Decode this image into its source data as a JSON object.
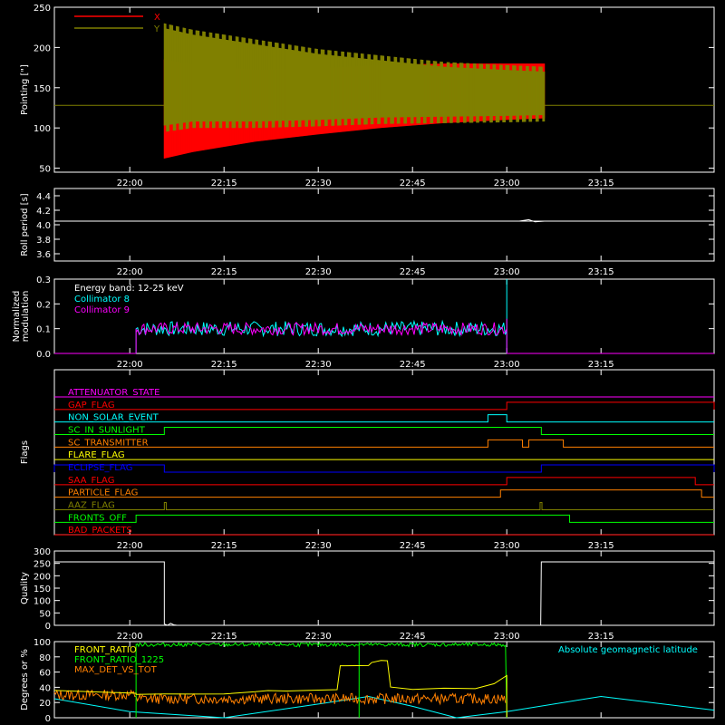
{
  "x_ticks": [
    "22:00",
    "22:15",
    "22:30",
    "22:45",
    "23:00",
    "23:15"
  ],
  "x_tick_minutes": [
    0,
    15,
    30,
    45,
    60,
    75
  ],
  "x_range_minutes": [
    -12,
    93
  ],
  "colors": {
    "background": "#000000",
    "axes": "#ffffff"
  },
  "chart_data": [
    {
      "type": "line",
      "ylabel": "Pointing [\"]",
      "ylim": [
        45,
        250
      ],
      "yticks": [
        50,
        100,
        150,
        200,
        250
      ],
      "legend": {
        "placement": "top-left",
        "entries": [
          {
            "name": "X",
            "color": "#ff0000"
          },
          {
            "name": "Y",
            "color": "#808000"
          }
        ]
      },
      "series": [
        {
          "name": "X",
          "color": "#ff0000",
          "points": [
            [
              5.5,
              62
            ],
            [
              10,
              70
            ],
            [
              20,
              83
            ],
            [
              30,
              92
            ],
            [
              40,
              100
            ],
            [
              50,
              106
            ],
            [
              60,
              110
            ],
            [
              66,
              112
            ]
          ],
          "upper": [
            [
              5.5,
              185
            ],
            [
              10,
              178
            ],
            [
              20,
              172
            ],
            [
              30,
              174
            ],
            [
              40,
              178
            ],
            [
              50,
              180
            ],
            [
              60,
              180
            ],
            [
              66,
              180
            ]
          ]
        },
        {
          "name": "Y",
          "color": "#808000",
          "points": [
            [
              5.5,
              230
            ],
            [
              10,
              222
            ],
            [
              20,
              210
            ],
            [
              30,
              198
            ],
            [
              40,
              190
            ],
            [
              50,
              182
            ],
            [
              60,
              178
            ],
            [
              66,
              176
            ]
          ],
          "lower": [
            [
              5.5,
              95
            ],
            [
              10,
              100
            ],
            [
              20,
              100
            ],
            [
              30,
              102
            ],
            [
              40,
              105
            ],
            [
              50,
              106
            ],
            [
              60,
              107
            ],
            [
              66,
              108
            ]
          ]
        }
      ],
      "baseline": 128
    },
    {
      "type": "line",
      "ylabel": "Roll period [s]",
      "ylim": [
        3.5,
        4.5
      ],
      "yticks": [
        "3.6",
        "3.8",
        "4.0",
        "4.2",
        "4.4"
      ],
      "series": [
        {
          "name": "",
          "color": "#ffffff",
          "x": [
            -12,
            93
          ],
          "y": [
            4.05,
            4.05
          ]
        }
      ]
    },
    {
      "type": "line",
      "ylabel": "Normalized modulation",
      "ylim": [
        0,
        0.3
      ],
      "yticks": [
        "0.0",
        "0.1",
        "0.2",
        "0.3"
      ],
      "legend": {
        "placement": "top-left",
        "entries": [
          {
            "name": "Energy band: 12-25 keV",
            "color": "#ffffff"
          },
          {
            "name": "Collimator 8",
            "color": "#00ffff"
          },
          {
            "name": "Collimator 9",
            "color": "#ff00ff"
          }
        ]
      },
      "series": [
        {
          "name": "Collimator 8",
          "color": "#00ffff",
          "active_range": [
            1,
            60
          ],
          "mean": 0.1
        },
        {
          "name": "Collimator 9",
          "color": "#ff00ff",
          "active_range": [
            1,
            60
          ],
          "mean": 0.1
        }
      ]
    },
    {
      "type": "line",
      "ylabel": "Flags",
      "flags": [
        {
          "name": "ATTENUATOR_STATE",
          "color": "#ff00ff",
          "segments": []
        },
        {
          "name": "GAP_FLAG",
          "color": "#ff0000",
          "segments": [
            [
              60,
              93
            ]
          ]
        },
        {
          "name": "NON_SOLAR_EVENT",
          "color": "#00ffff",
          "segments": [
            [
              57,
              60
            ]
          ]
        },
        {
          "name": "SC_IN_SUNLIGHT",
          "color": "#00ff00",
          "segments": [
            [
              5.5,
              65.5
            ]
          ]
        },
        {
          "name": "SC_TRANSMITTER",
          "color": "#ff8000",
          "segments": [
            [
              57,
              62.5
            ],
            [
              63.5,
              69
            ]
          ]
        },
        {
          "name": "FLARE_FLAG",
          "color": "#ffff00",
          "segments": []
        },
        {
          "name": "ECLIPSE_FLAG",
          "color": "#0000ff",
          "segments": [
            [
              -12,
              5.5
            ],
            [
              65.5,
              93
            ]
          ]
        },
        {
          "name": "SAA_FLAG",
          "color": "#ff0000",
          "segments": [
            [
              60,
              90
            ]
          ]
        },
        {
          "name": "PARTICLE_FLAG",
          "color": "#ff8000",
          "segments": [
            [
              59,
              91
            ]
          ]
        },
        {
          "name": "AAZ_FLAG",
          "color": "#808000",
          "segments": [
            [
              5.5,
              5.8
            ],
            [
              65.3,
              65.6
            ]
          ]
        },
        {
          "name": "FRONTS_OFF",
          "color": "#00ff00",
          "segments": [
            [
              1,
              70
            ]
          ]
        },
        {
          "name": "BAD_PACKETS",
          "color": "#ff0000",
          "segments": []
        }
      ]
    },
    {
      "type": "line",
      "ylabel": "Quality",
      "ylim": [
        0,
        300
      ],
      "yticks": [
        "0",
        "50",
        "100",
        "150",
        "200",
        "250",
        "300"
      ],
      "series": [
        {
          "name": "",
          "color": "#ffffff",
          "x": [
            -12,
            5.5,
            5.5,
            6,
            6.5,
            7,
            7.5,
            65.4,
            65.5,
            93
          ],
          "y": [
            256,
            256,
            5,
            0,
            8,
            2,
            0,
            0,
            256,
            256
          ]
        }
      ]
    },
    {
      "type": "line",
      "ylabel": "Degrees or %",
      "ylim": [
        0,
        100
      ],
      "yticks": [
        "0",
        "20",
        "40",
        "60",
        "80",
        "100"
      ],
      "annotation": "Absolute geomagnetic latitude",
      "legend": {
        "placement": "top-left",
        "entries": [
          {
            "name": "FRONT_RATIO",
            "color": "#ffff00"
          },
          {
            "name": "FRONT_RATIO_1225",
            "color": "#00ff00"
          },
          {
            "name": "MAX_DET_VS_TOT",
            "color": "#ff8000"
          }
        ]
      },
      "series": [
        {
          "name": "FRONT_RATIO",
          "color": "#ffff00",
          "x": [
            -12,
            1,
            1,
            5.5,
            10,
            15,
            20,
            22,
            25,
            30,
            33,
            33.5,
            38,
            38.5,
            40,
            41,
            41.5,
            45,
            50,
            55,
            58,
            60,
            60
          ],
          "y": [
            35,
            33,
            30,
            32,
            32,
            32,
            34,
            36,
            35,
            36,
            37,
            68,
            68,
            72,
            75,
            75,
            40,
            38,
            38,
            38,
            45,
            55,
            0
          ]
        },
        {
          "name": "FRONT_RATIO_1225",
          "color": "#00ff00",
          "active_range": [
            1,
            60
          ],
          "mean": 97
        },
        {
          "name": "MAX_DET_VS_TOT",
          "color": "#ff8000",
          "mean_before": 30,
          "mean_during": 25,
          "active_range": [
            -12,
            60
          ]
        },
        {
          "name": "Absolute geomagnetic latitude",
          "color": "#00ffff",
          "x": [
            -12,
            0,
            15,
            30,
            38,
            45,
            52,
            60,
            75,
            93
          ],
          "y": [
            25,
            8,
            0,
            18,
            28,
            15,
            0,
            8,
            28,
            10
          ]
        }
      ]
    }
  ]
}
